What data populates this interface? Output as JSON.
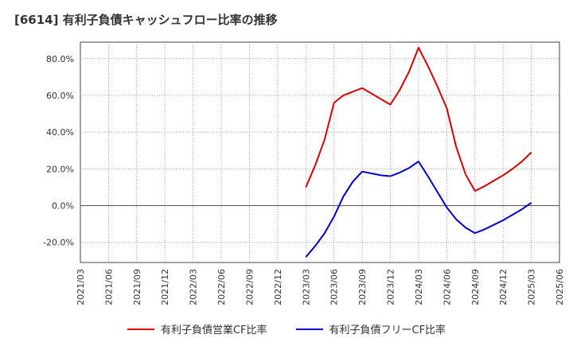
{
  "chart_data": {
    "type": "line",
    "title": "[6614]  有利子負債キャッシュフロー比率の推移",
    "x_ticks": [
      "2021/03",
      "2021/06",
      "2021/09",
      "2021/12",
      "2022/03",
      "2022/06",
      "2022/09",
      "2022/12",
      "2023/03",
      "2023/06",
      "2023/09",
      "2023/12",
      "2024/03",
      "2024/06",
      "2024/09",
      "2024/12",
      "2025/03",
      "2025/06"
    ],
    "y_ticks": [
      "-20.0%",
      "0.0%",
      "20.0%",
      "40.0%",
      "60.0%",
      "80.0%"
    ],
    "ylim": [
      -31,
      89
    ],
    "grid": true,
    "legend_position": "bottom",
    "series": [
      {
        "name": "有利子負債営業CF比率",
        "color": "#dd0000",
        "points": [
          [
            "2023/03",
            10.0
          ],
          [
            "2023/04",
            22.0
          ],
          [
            "2023/05",
            36.0
          ],
          [
            "2023/06",
            56.0
          ],
          [
            "2023/07",
            60.0
          ],
          [
            "2023/08",
            62.0
          ],
          [
            "2023/09",
            64.0
          ],
          [
            "2023/10",
            61.0
          ],
          [
            "2023/11",
            58.0
          ],
          [
            "2023/12",
            55.0
          ],
          [
            "2024/01",
            63.0
          ],
          [
            "2024/02",
            73.0
          ],
          [
            "2024/03",
            86.0
          ],
          [
            "2024/04",
            76.0
          ],
          [
            "2024/05",
            65.0
          ],
          [
            "2024/06",
            53.0
          ],
          [
            "2024/07",
            32.0
          ],
          [
            "2024/08",
            17.0
          ],
          [
            "2024/09",
            8.0
          ],
          [
            "2024/10",
            10.5
          ],
          [
            "2024/11",
            13.5
          ],
          [
            "2024/12",
            16.5
          ],
          [
            "2025/01",
            20.0
          ],
          [
            "2025/02",
            24.0
          ],
          [
            "2025/03",
            29.0
          ]
        ]
      },
      {
        "name": "有利子負債フリーCF比率",
        "color": "#0000cc",
        "points": [
          [
            "2023/03",
            -28.0
          ],
          [
            "2023/04",
            -22.0
          ],
          [
            "2023/05",
            -15.0
          ],
          [
            "2023/06",
            -6.0
          ],
          [
            "2023/07",
            5.0
          ],
          [
            "2023/08",
            13.0
          ],
          [
            "2023/09",
            18.5
          ],
          [
            "2023/10",
            17.5
          ],
          [
            "2023/11",
            16.5
          ],
          [
            "2023/12",
            16.0
          ],
          [
            "2024/01",
            18.0
          ],
          [
            "2024/02",
            20.5
          ],
          [
            "2024/03",
            24.0
          ],
          [
            "2024/04",
            16.0
          ],
          [
            "2024/05",
            7.5
          ],
          [
            "2024/06",
            -1.0
          ],
          [
            "2024/07",
            -7.5
          ],
          [
            "2024/08",
            -12.0
          ],
          [
            "2024/09",
            -15.0
          ],
          [
            "2024/10",
            -13.0
          ],
          [
            "2024/11",
            -10.5
          ],
          [
            "2024/12",
            -8.0
          ],
          [
            "2025/01",
            -5.0
          ],
          [
            "2025/02",
            -2.0
          ],
          [
            "2025/03",
            1.5
          ]
        ]
      }
    ]
  }
}
